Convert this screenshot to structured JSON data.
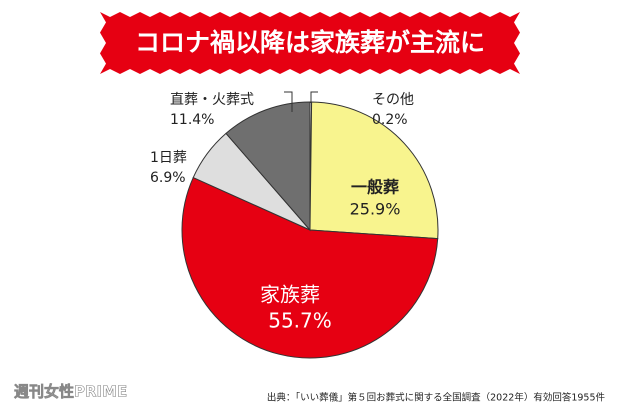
{
  "chart_data": {
    "type": "pie",
    "title": "コロナ禍以降は家族葬が主流に",
    "categories": [
      "その他",
      "一般葬",
      "家族葬",
      "1日葬",
      "直葬・火葬式"
    ],
    "values": [
      0.2,
      25.9,
      55.7,
      6.9,
      11.4
    ],
    "value_labels": [
      "0.2%",
      "25.9%",
      "55.7%",
      "6.9%",
      "11.4%"
    ],
    "colors": [
      "#f2f2f2",
      "#f8f48e",
      "#e60012",
      "#dedede",
      "#6f6f6f"
    ],
    "source": "出典：「いい葬儀」第５回お葬式に関する全国調査（2022年）有効回答1955件",
    "watermark": "週刊女性PRIME"
  }
}
